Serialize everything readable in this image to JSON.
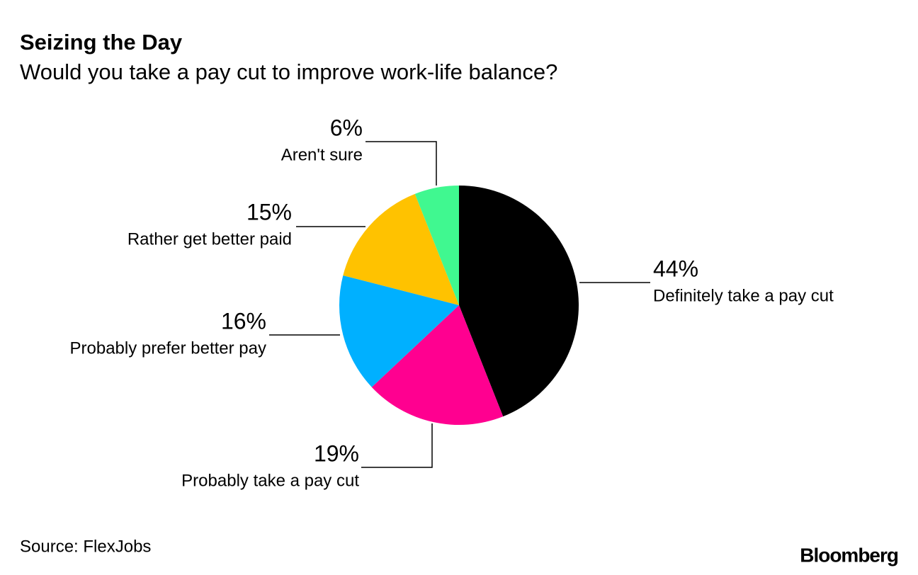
{
  "chart_data": {
    "type": "pie",
    "title": "Seizing the Day",
    "subtitle": "Would you take a pay cut to improve work-life balance?",
    "categories": [
      "Definitely take a pay cut",
      "Probably take a pay cut",
      "Probably prefer better pay",
      "Rather get better paid",
      "Aren't sure"
    ],
    "values": [
      44,
      19,
      16,
      15,
      6
    ],
    "value_labels": [
      "44%",
      "19%",
      "16%",
      "15%",
      "6%"
    ],
    "colors": [
      "#000000",
      "#ff0090",
      "#00b0ff",
      "#ffc200",
      "#40f890"
    ],
    "source": "Source: FlexJobs",
    "brand": "Bloomberg"
  }
}
